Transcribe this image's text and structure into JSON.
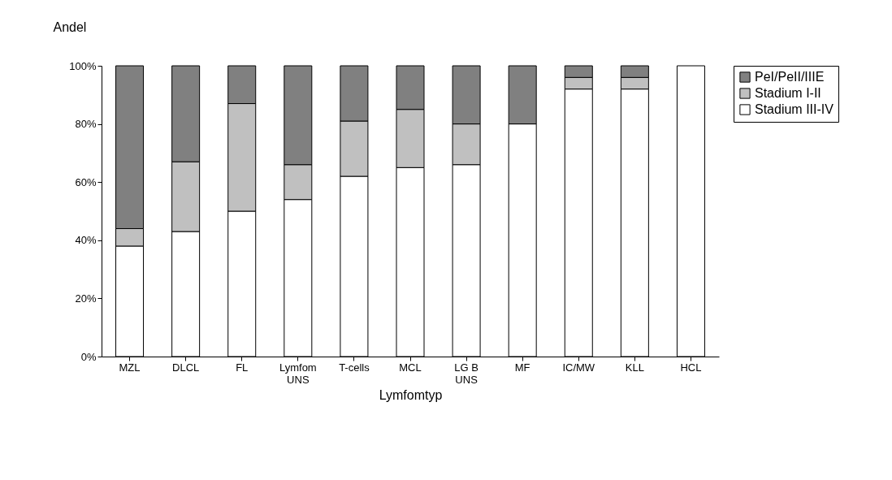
{
  "chart_data": {
    "type": "bar",
    "stacked": true,
    "xlabel": "Lymfomtyp",
    "ylabel": "Andel",
    "categories": [
      "MZL",
      "DLCL",
      "FL",
      "Lymfom UNS",
      "T-cells",
      "MCL",
      "LG B UNS",
      "MF",
      "IC/MW",
      "KLL",
      "HCL"
    ],
    "series": [
      {
        "name": "Stadium III-IV",
        "color": "#ffffff",
        "values": [
          38,
          43,
          50,
          54,
          62,
          65,
          66,
          80,
          92,
          92,
          100
        ]
      },
      {
        "name": "Stadium I-II",
        "color": "#c0c0c0",
        "values": [
          6,
          24,
          37,
          12,
          19,
          20,
          14,
          0,
          4,
          4,
          0
        ]
      },
      {
        "name": "PeI/PeII/IIIE",
        "color": "#808080",
        "values": [
          56,
          33,
          13,
          34,
          19,
          15,
          20,
          20,
          4,
          4,
          0
        ]
      }
    ],
    "ylim": [
      0,
      100
    ],
    "yticks": [
      {
        "value": 0,
        "label": "0%"
      },
      {
        "value": 20,
        "label": "20%"
      },
      {
        "value": 40,
        "label": "40%"
      },
      {
        "value": 60,
        "label": "60%"
      },
      {
        "value": 80,
        "label": "80%"
      },
      {
        "value": 100,
        "label": "100%"
      }
    ],
    "grid": false,
    "legend": "right"
  }
}
